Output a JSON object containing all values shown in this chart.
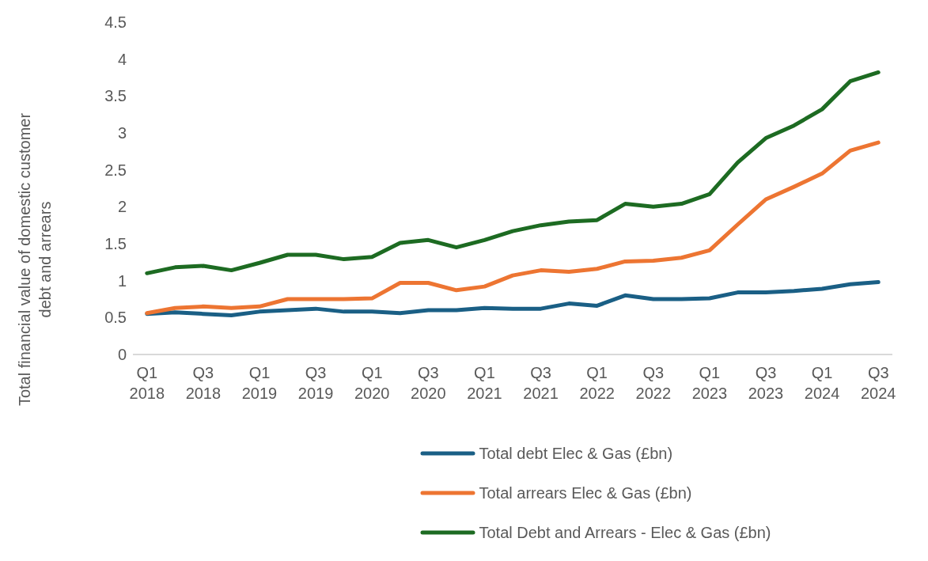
{
  "chart_data": {
    "type": "line",
    "ylabel": "Total financial value of domestic customer debt and arrears",
    "categories": [
      "Q1 2018",
      null,
      "Q3 2018",
      null,
      "Q1 2019",
      null,
      "Q3 2019",
      null,
      "Q1 2020",
      null,
      "Q3 2020",
      null,
      "Q1 2021",
      null,
      "Q3 2021",
      null,
      "Q1 2022",
      null,
      "Q3 2022",
      null,
      "Q1 2023",
      null,
      "Q3 2023",
      null,
      "Q1 2024",
      null,
      "Q3 2024"
    ],
    "series": [
      {
        "name": "Total debt Elec & Gas (£bn)",
        "color": "#1a5f85",
        "values": [
          0.55,
          0.57,
          0.55,
          0.53,
          0.58,
          0.6,
          0.62,
          0.58,
          0.58,
          0.56,
          0.6,
          0.6,
          0.63,
          0.62,
          0.62,
          0.69,
          0.66,
          0.8,
          0.75,
          0.75,
          0.76,
          0.84,
          0.84,
          0.86,
          0.89,
          0.95,
          0.98
        ]
      },
      {
        "name": "Total arrears Elec & Gas (£bn)",
        "color": "#ed7532",
        "values": [
          0.56,
          0.63,
          0.65,
          0.63,
          0.65,
          0.75,
          0.75,
          0.75,
          0.76,
          0.97,
          0.97,
          0.87,
          0.92,
          1.07,
          1.14,
          1.12,
          1.16,
          1.26,
          1.27,
          1.31,
          1.41,
          1.76,
          2.1,
          2.27,
          2.45,
          2.76,
          2.87
        ]
      },
      {
        "name": "Total Debt and Arrears - Elec & Gas (£bn)",
        "color": "#1d6b22",
        "values": [
          1.1,
          1.18,
          1.2,
          1.14,
          1.24,
          1.35,
          1.35,
          1.29,
          1.32,
          1.51,
          1.55,
          1.45,
          1.55,
          1.67,
          1.75,
          1.8,
          1.82,
          2.04,
          2.0,
          2.04,
          2.17,
          2.6,
          2.93,
          3.1,
          3.32,
          3.7,
          3.82
        ]
      }
    ],
    "ylim": [
      0,
      4.5
    ],
    "yticks": [
      0,
      0.5,
      1,
      1.5,
      2,
      2.5,
      3,
      3.5,
      4,
      4.5
    ],
    "grid": false,
    "legend": "bottom",
    "marker": "none",
    "line_style": "solid"
  }
}
